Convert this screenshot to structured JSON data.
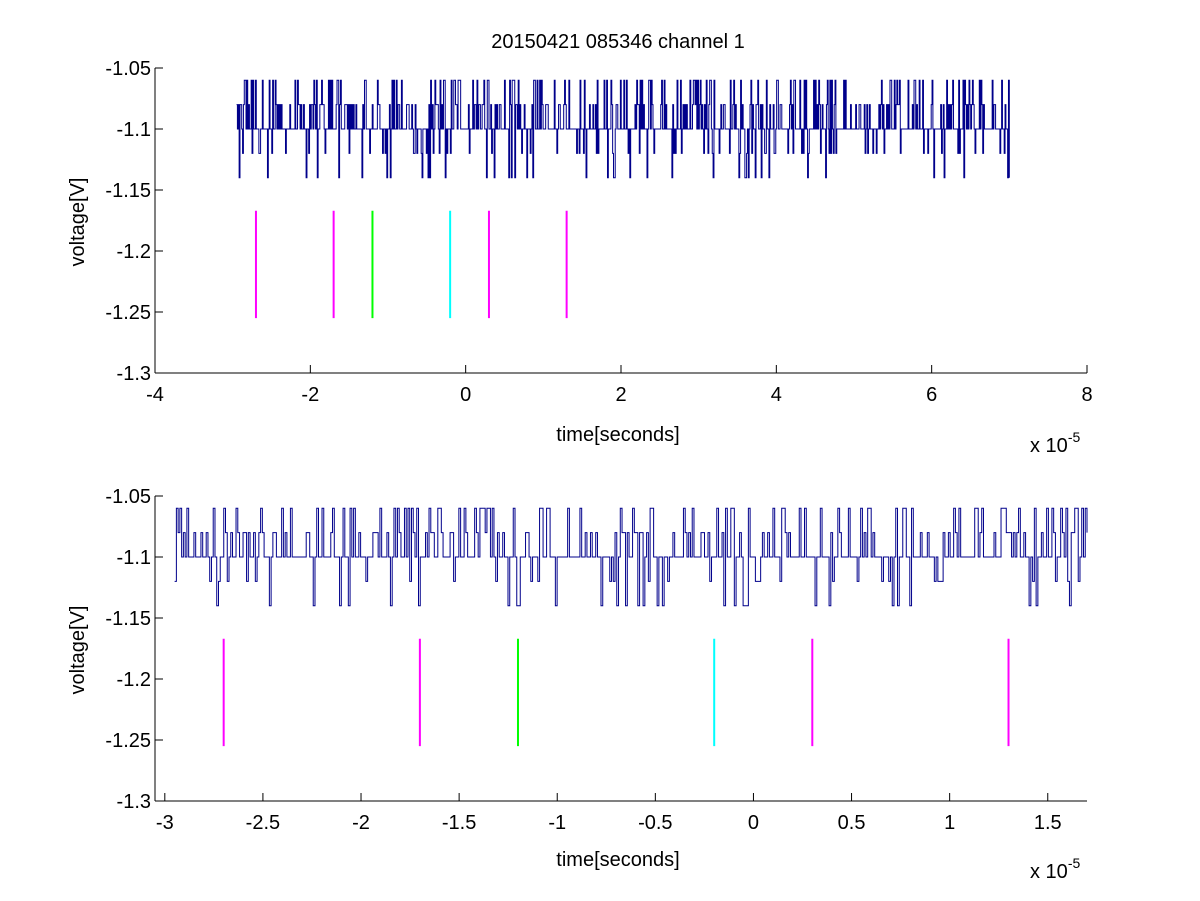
{
  "figure": {
    "title": "20150421 085346 channel 1"
  },
  "colors": {
    "signal": "#00008b",
    "magenta": "#ff00ff",
    "green": "#00ff00",
    "cyan": "#00ffff"
  },
  "chart_data": [
    {
      "type": "line",
      "title": "20150421 085346 channel 1",
      "xlabel": "time[seconds]",
      "ylabel": "voltage[V]",
      "x_exponent_label": "x 10",
      "x_exponent": "-5",
      "x_scale": 1e-05,
      "xlim": [
        -4,
        8
      ],
      "ylim": [
        -1.3,
        -1.05
      ],
      "xticks": [
        -4,
        -2,
        0,
        2,
        4,
        6,
        8
      ],
      "xtick_labels": [
        "-4",
        "-2",
        "0",
        "2",
        "4",
        "6",
        "8"
      ],
      "yticks": [
        -1.05,
        -1.1,
        -1.15,
        -1.2,
        -1.25,
        -1.3
      ],
      "ytick_labels": [
        "-1.05",
        "-1.1",
        "-1.15",
        "-1.2",
        "-1.25",
        "-1.3"
      ],
      "grid": false,
      "series": [
        {
          "kind": "signal",
          "color": "signal",
          "x_range": [
            -2.95,
            7.0
          ],
          "levels": [
            -1.06,
            -1.08,
            -1.1,
            -1.12,
            -1.14
          ],
          "base_level": -1.1
        }
      ],
      "markers": [
        {
          "x": -2.7,
          "y1": -1.167,
          "y2": -1.255,
          "color": "magenta"
        },
        {
          "x": -1.7,
          "y1": -1.167,
          "y2": -1.255,
          "color": "magenta"
        },
        {
          "x": -1.2,
          "y1": -1.167,
          "y2": -1.255,
          "color": "green"
        },
        {
          "x": -0.2,
          "y1": -1.167,
          "y2": -1.255,
          "color": "cyan"
        },
        {
          "x": 0.3,
          "y1": -1.167,
          "y2": -1.255,
          "color": "magenta"
        },
        {
          "x": 1.3,
          "y1": -1.167,
          "y2": -1.255,
          "color": "magenta"
        }
      ]
    },
    {
      "type": "line",
      "title": "",
      "xlabel": "time[seconds]",
      "ylabel": "voltage[V]",
      "x_exponent_label": "x 10",
      "x_exponent": "-5",
      "x_scale": 1e-05,
      "xlim": [
        -3.05,
        1.7
      ],
      "ylim": [
        -1.3,
        -1.05
      ],
      "xticks": [
        -3,
        -2.5,
        -2,
        -1.5,
        -1,
        -0.5,
        0,
        0.5,
        1,
        1.5
      ],
      "xtick_labels": [
        "-3",
        "-2.5",
        "-2",
        "-1.5",
        "-1",
        "-0.5",
        "0",
        "0.5",
        "1",
        "1.5"
      ],
      "yticks": [
        -1.05,
        -1.1,
        -1.15,
        -1.2,
        -1.25,
        -1.3
      ],
      "ytick_labels": [
        "-1.05",
        "-1.1",
        "-1.15",
        "-1.2",
        "-1.25",
        "-1.3"
      ],
      "grid": false,
      "series": [
        {
          "kind": "signal",
          "color": "signal",
          "x_range": [
            -2.95,
            1.7
          ],
          "levels": [
            -1.06,
            -1.08,
            -1.1,
            -1.12,
            -1.14
          ],
          "base_level": -1.1
        }
      ],
      "markers": [
        {
          "x": -2.7,
          "y1": -1.167,
          "y2": -1.255,
          "color": "magenta"
        },
        {
          "x": -1.7,
          "y1": -1.167,
          "y2": -1.255,
          "color": "magenta"
        },
        {
          "x": -1.2,
          "y1": -1.167,
          "y2": -1.255,
          "color": "green"
        },
        {
          "x": -0.2,
          "y1": -1.167,
          "y2": -1.255,
          "color": "cyan"
        },
        {
          "x": 0.3,
          "y1": -1.167,
          "y2": -1.255,
          "color": "magenta"
        },
        {
          "x": 1.3,
          "y1": -1.167,
          "y2": -1.255,
          "color": "magenta"
        }
      ]
    }
  ]
}
